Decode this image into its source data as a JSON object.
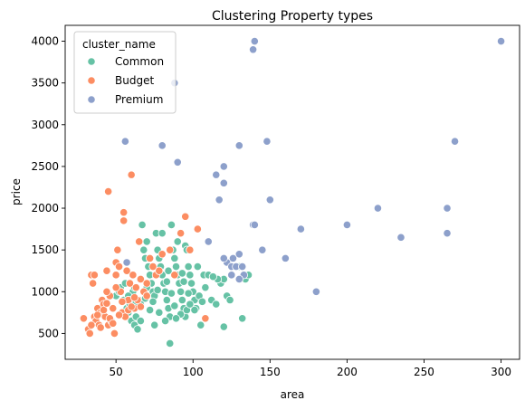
{
  "chart_data": {
    "type": "scatter",
    "title": "Clustering Property types",
    "xlabel": "area",
    "ylabel": "price",
    "xlim": [
      17,
      312
    ],
    "ylim": [
      190,
      4190
    ],
    "xticks": [
      50,
      100,
      150,
      200,
      250,
      300
    ],
    "yticks": [
      500,
      1000,
      1500,
      2000,
      2500,
      3000,
      3500,
      4000
    ],
    "grid": false,
    "legend": {
      "title": "cluster_name",
      "placement": "top-left"
    },
    "series": [
      {
        "name": "Common",
        "color": "#66c2a5",
        "points": [
          [
            50,
            950
          ],
          [
            52,
            1000
          ],
          [
            53,
            1050
          ],
          [
            55,
            900
          ],
          [
            56,
            1100
          ],
          [
            57,
            800
          ],
          [
            58,
            750
          ],
          [
            59,
            850
          ],
          [
            60,
            650
          ],
          [
            61,
            1000
          ],
          [
            62,
            600
          ],
          [
            63,
            700
          ],
          [
            64,
            550
          ],
          [
            65,
            900
          ],
          [
            66,
            650
          ],
          [
            67,
            1800
          ],
          [
            68,
            1500
          ],
          [
            69,
            1400
          ],
          [
            70,
            1600
          ],
          [
            71,
            1300
          ],
          [
            72,
            1200
          ],
          [
            73,
            1100
          ],
          [
            74,
            1000
          ],
          [
            75,
            950
          ],
          [
            75,
            600
          ],
          [
            76,
            1700
          ],
          [
            77,
            1500
          ],
          [
            78,
            1400
          ],
          [
            79,
            1300
          ],
          [
            80,
            1200
          ],
          [
            80,
            1700
          ],
          [
            81,
            1100
          ],
          [
            82,
            1000
          ],
          [
            83,
            900
          ],
          [
            84,
            800
          ],
          [
            85,
            700
          ],
          [
            85,
            380
          ],
          [
            86,
            1800
          ],
          [
            87,
            1500
          ],
          [
            88,
            1400
          ],
          [
            89,
            1300
          ],
          [
            90,
            1200
          ],
          [
            90,
            1600
          ],
          [
            91,
            1100
          ],
          [
            92,
            1000
          ],
          [
            93,
            900
          ],
          [
            94,
            800
          ],
          [
            95,
            700
          ],
          [
            95,
            1550
          ],
          [
            96,
            1500
          ],
          [
            97,
            1300
          ],
          [
            98,
            1200
          ],
          [
            99,
            1100
          ],
          [
            100,
            1000
          ],
          [
            101,
            900
          ],
          [
            102,
            800
          ],
          [
            103,
            1300
          ],
          [
            105,
            600
          ],
          [
            107,
            1200
          ],
          [
            110,
            1200
          ],
          [
            112,
            900
          ],
          [
            115,
            850
          ],
          [
            118,
            1100
          ],
          [
            120,
            1150
          ],
          [
            120,
            580
          ],
          [
            122,
            950
          ],
          [
            124,
            900
          ],
          [
            125,
            1200
          ],
          [
            130,
            1300
          ],
          [
            132,
            680
          ],
          [
            134,
            1150
          ],
          [
            136,
            1200
          ],
          [
            58,
            950
          ],
          [
            62,
            1050
          ],
          [
            66,
            850
          ],
          [
            70,
            1050
          ],
          [
            72,
            780
          ],
          [
            74,
            880
          ],
          [
            78,
            750
          ],
          [
            82,
            650
          ],
          [
            84,
            1250
          ],
          [
            86,
            980
          ],
          [
            88,
            830
          ],
          [
            92,
            730
          ],
          [
            94,
            1120
          ],
          [
            96,
            780
          ],
          [
            98,
            850
          ],
          [
            104,
            950
          ],
          [
            108,
            1050
          ],
          [
            63,
            870
          ],
          [
            69,
            920
          ],
          [
            77,
            1020
          ],
          [
            83,
            1120
          ],
          [
            89,
            680
          ],
          [
            93,
            1220
          ],
          [
            97,
            980
          ],
          [
            101,
            780
          ],
          [
            106,
            880
          ],
          [
            116,
            1150
          ],
          [
            113,
            1180
          ]
        ]
      },
      {
        "name": "Budget",
        "color": "#fc8d62",
        "points": [
          [
            29,
            680
          ],
          [
            32,
            550
          ],
          [
            33,
            500
          ],
          [
            34,
            1200
          ],
          [
            35,
            1100
          ],
          [
            36,
            700
          ],
          [
            37,
            650
          ],
          [
            38,
            800
          ],
          [
            39,
            600
          ],
          [
            40,
            750
          ],
          [
            41,
            900
          ],
          [
            42,
            850
          ],
          [
            43,
            700
          ],
          [
            44,
            1250
          ],
          [
            45,
            2200
          ],
          [
            45,
            600
          ],
          [
            46,
            950
          ],
          [
            47,
            650
          ],
          [
            48,
            800
          ],
          [
            49,
            500
          ],
          [
            50,
            1350
          ],
          [
            50,
            1200
          ],
          [
            51,
            1500
          ],
          [
            52,
            1300
          ],
          [
            53,
            1000
          ],
          [
            54,
            750
          ],
          [
            55,
            1950
          ],
          [
            55,
            1850
          ],
          [
            56,
            700
          ],
          [
            57,
            1250
          ],
          [
            58,
            900
          ],
          [
            59,
            1100
          ],
          [
            60,
            2400
          ],
          [
            61,
            1200
          ],
          [
            62,
            800
          ],
          [
            63,
            1050
          ],
          [
            64,
            900
          ],
          [
            65,
            1600
          ],
          [
            66,
            1150
          ],
          [
            68,
            1000
          ],
          [
            70,
            1100
          ],
          [
            72,
            1400
          ],
          [
            74,
            1300
          ],
          [
            76,
            1200
          ],
          [
            78,
            1250
          ],
          [
            80,
            1450
          ],
          [
            85,
            1500
          ],
          [
            88,
            1200
          ],
          [
            92,
            1700
          ],
          [
            95,
            1900
          ],
          [
            98,
            1500
          ],
          [
            103,
            1750
          ],
          [
            108,
            680
          ],
          [
            38,
            720
          ],
          [
            42,
            780
          ],
          [
            46,
            680
          ],
          [
            48,
            620
          ],
          [
            52,
            720
          ],
          [
            54,
            880
          ],
          [
            58,
            780
          ],
          [
            62,
            930
          ],
          [
            66,
            820
          ],
          [
            70,
            950
          ],
          [
            40,
            570
          ],
          [
            44,
            1000
          ],
          [
            50,
            1050
          ],
          [
            36,
            1200
          ],
          [
            44,
            860
          ],
          [
            34,
            600
          ],
          [
            60,
            820
          ]
        ]
      },
      {
        "name": "Premium",
        "color": "#8da0cb",
        "points": [
          [
            56,
            2800
          ],
          [
            57,
            1350
          ],
          [
            80,
            2750
          ],
          [
            88,
            3500
          ],
          [
            90,
            2550
          ],
          [
            115,
            2400
          ],
          [
            117,
            2100
          ],
          [
            120,
            2500
          ],
          [
            120,
            2300
          ],
          [
            122,
            1350
          ],
          [
            125,
            1300
          ],
          [
            126,
            1400
          ],
          [
            128,
            1300
          ],
          [
            130,
            2750
          ],
          [
            130,
            1450
          ],
          [
            132,
            1300
          ],
          [
            133,
            1200
          ],
          [
            139,
            3900
          ],
          [
            140,
            4000
          ],
          [
            139,
            1800
          ],
          [
            140,
            1800
          ],
          [
            145,
            1500
          ],
          [
            148,
            2800
          ],
          [
            150,
            2100
          ],
          [
            160,
            1400
          ],
          [
            170,
            1750
          ],
          [
            180,
            1000
          ],
          [
            200,
            1800
          ],
          [
            220,
            2000
          ],
          [
            235,
            1650
          ],
          [
            265,
            2000
          ],
          [
            265,
            1700
          ],
          [
            270,
            2800
          ],
          [
            300,
            4000
          ],
          [
            110,
            1600
          ],
          [
            120,
            1400
          ],
          [
            125,
            1200
          ],
          [
            130,
            1150
          ]
        ]
      }
    ]
  }
}
